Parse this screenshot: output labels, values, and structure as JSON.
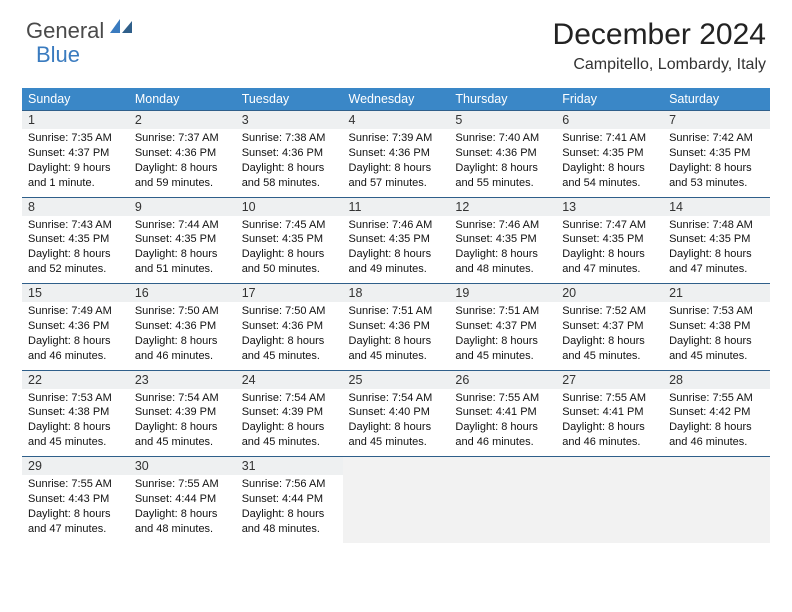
{
  "logo": {
    "part1": "General",
    "part2": "Blue"
  },
  "title": "December 2024",
  "location": "Campitello, Lombardy, Italy",
  "colors": {
    "header_bg": "#3a87c7",
    "header_text": "#ffffff",
    "daynum_bg": "#eef0f1",
    "row_divider": "#2f5f8a",
    "logo_gray": "#4a4a4a",
    "logo_blue": "#3a7bbf"
  },
  "day_headers": [
    "Sunday",
    "Monday",
    "Tuesday",
    "Wednesday",
    "Thursday",
    "Friday",
    "Saturday"
  ],
  "weeks": [
    [
      {
        "num": "1",
        "sunrise": "7:35 AM",
        "sunset": "4:37 PM",
        "daylight": "9 hours and 1 minute."
      },
      {
        "num": "2",
        "sunrise": "7:37 AM",
        "sunset": "4:36 PM",
        "daylight": "8 hours and 59 minutes."
      },
      {
        "num": "3",
        "sunrise": "7:38 AM",
        "sunset": "4:36 PM",
        "daylight": "8 hours and 58 minutes."
      },
      {
        "num": "4",
        "sunrise": "7:39 AM",
        "sunset": "4:36 PM",
        "daylight": "8 hours and 57 minutes."
      },
      {
        "num": "5",
        "sunrise": "7:40 AM",
        "sunset": "4:36 PM",
        "daylight": "8 hours and 55 minutes."
      },
      {
        "num": "6",
        "sunrise": "7:41 AM",
        "sunset": "4:35 PM",
        "daylight": "8 hours and 54 minutes."
      },
      {
        "num": "7",
        "sunrise": "7:42 AM",
        "sunset": "4:35 PM",
        "daylight": "8 hours and 53 minutes."
      }
    ],
    [
      {
        "num": "8",
        "sunrise": "7:43 AM",
        "sunset": "4:35 PM",
        "daylight": "8 hours and 52 minutes."
      },
      {
        "num": "9",
        "sunrise": "7:44 AM",
        "sunset": "4:35 PM",
        "daylight": "8 hours and 51 minutes."
      },
      {
        "num": "10",
        "sunrise": "7:45 AM",
        "sunset": "4:35 PM",
        "daylight": "8 hours and 50 minutes."
      },
      {
        "num": "11",
        "sunrise": "7:46 AM",
        "sunset": "4:35 PM",
        "daylight": "8 hours and 49 minutes."
      },
      {
        "num": "12",
        "sunrise": "7:46 AM",
        "sunset": "4:35 PM",
        "daylight": "8 hours and 48 minutes."
      },
      {
        "num": "13",
        "sunrise": "7:47 AM",
        "sunset": "4:35 PM",
        "daylight": "8 hours and 47 minutes."
      },
      {
        "num": "14",
        "sunrise": "7:48 AM",
        "sunset": "4:35 PM",
        "daylight": "8 hours and 47 minutes."
      }
    ],
    [
      {
        "num": "15",
        "sunrise": "7:49 AM",
        "sunset": "4:36 PM",
        "daylight": "8 hours and 46 minutes."
      },
      {
        "num": "16",
        "sunrise": "7:50 AM",
        "sunset": "4:36 PM",
        "daylight": "8 hours and 46 minutes."
      },
      {
        "num": "17",
        "sunrise": "7:50 AM",
        "sunset": "4:36 PM",
        "daylight": "8 hours and 45 minutes."
      },
      {
        "num": "18",
        "sunrise": "7:51 AM",
        "sunset": "4:36 PM",
        "daylight": "8 hours and 45 minutes."
      },
      {
        "num": "19",
        "sunrise": "7:51 AM",
        "sunset": "4:37 PM",
        "daylight": "8 hours and 45 minutes."
      },
      {
        "num": "20",
        "sunrise": "7:52 AM",
        "sunset": "4:37 PM",
        "daylight": "8 hours and 45 minutes."
      },
      {
        "num": "21",
        "sunrise": "7:53 AM",
        "sunset": "4:38 PM",
        "daylight": "8 hours and 45 minutes."
      }
    ],
    [
      {
        "num": "22",
        "sunrise": "7:53 AM",
        "sunset": "4:38 PM",
        "daylight": "8 hours and 45 minutes."
      },
      {
        "num": "23",
        "sunrise": "7:54 AM",
        "sunset": "4:39 PM",
        "daylight": "8 hours and 45 minutes."
      },
      {
        "num": "24",
        "sunrise": "7:54 AM",
        "sunset": "4:39 PM",
        "daylight": "8 hours and 45 minutes."
      },
      {
        "num": "25",
        "sunrise": "7:54 AM",
        "sunset": "4:40 PM",
        "daylight": "8 hours and 45 minutes."
      },
      {
        "num": "26",
        "sunrise": "7:55 AM",
        "sunset": "4:41 PM",
        "daylight": "8 hours and 46 minutes."
      },
      {
        "num": "27",
        "sunrise": "7:55 AM",
        "sunset": "4:41 PM",
        "daylight": "8 hours and 46 minutes."
      },
      {
        "num": "28",
        "sunrise": "7:55 AM",
        "sunset": "4:42 PM",
        "daylight": "8 hours and 46 minutes."
      }
    ],
    [
      {
        "num": "29",
        "sunrise": "7:55 AM",
        "sunset": "4:43 PM",
        "daylight": "8 hours and 47 minutes."
      },
      {
        "num": "30",
        "sunrise": "7:55 AM",
        "sunset": "4:44 PM",
        "daylight": "8 hours and 48 minutes."
      },
      {
        "num": "31",
        "sunrise": "7:56 AM",
        "sunset": "4:44 PM",
        "daylight": "8 hours and 48 minutes."
      },
      null,
      null,
      null,
      null
    ]
  ],
  "labels": {
    "sunrise": "Sunrise: ",
    "sunset": "Sunset: ",
    "daylight": "Daylight: "
  }
}
